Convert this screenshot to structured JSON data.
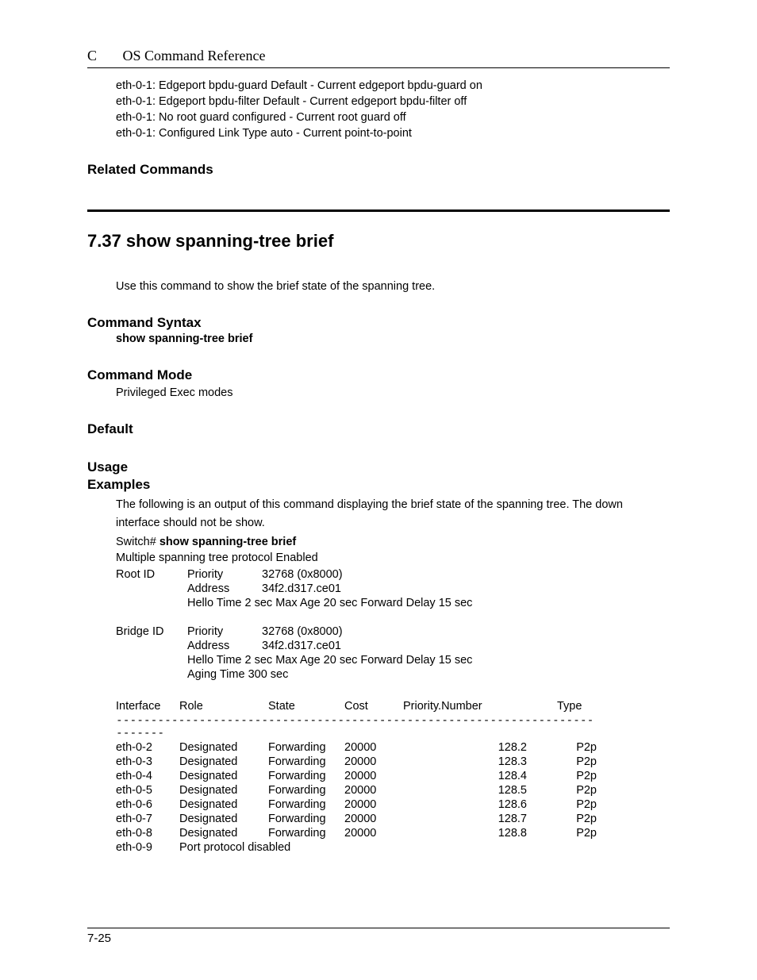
{
  "header": {
    "chapter_letter": "C",
    "title": "OS Command Reference"
  },
  "intro_lines": [
    "eth-0-1: Edgeport bpdu-guard   Default - Current edgeport bpdu-guard on",
    "eth-0-1: Edgeport bpdu-filter Default - Current edgeport bpdu-filter off",
    "eth-0-1: No root guard configured - Current root guard off",
    "eth-0-1: Configured Link Type auto - Current point-to-point"
  ],
  "related_heading": "Related Commands",
  "section": {
    "number": "7.37",
    "title": "show spanning-tree brief",
    "description": "Use this command to show the brief state of the spanning tree."
  },
  "syntax": {
    "heading": "Command Syntax",
    "line": "show spanning-tree brief"
  },
  "mode": {
    "heading": "Command Mode",
    "text": "Privileged Exec modes"
  },
  "default_heading": "Default",
  "usage_heading": "Usage",
  "examples": {
    "heading": "Examples",
    "intro": "The following is an output of this command displaying the brief state of the spanning tree. The down interface should not be show.",
    "prompt_prefix": "Switch# ",
    "prompt_cmd": "show spanning-tree brief",
    "protocol_line": "Multiple spanning tree protocol Enabled",
    "root": {
      "label": "Root ID",
      "priority_key": "Priority",
      "priority_val": "32768 (0x8000)",
      "address_key": "Address",
      "address_val": "34f2.d317.ce01",
      "timers": "Hello Time   2 sec   Max Age   20 sec Forward Delay 15 sec"
    },
    "bridge": {
      "label": "Bridge ID",
      "priority_key": "Priority",
      "priority_val": "32768 (0x8000)",
      "address_key": "Address",
      "address_val": "34f2.d317.ce01",
      "timers": "Hello Time   2 sec   Max Age   20 sec Forward Delay 15 sec",
      "aging": "Aging Time 300 sec"
    },
    "columns": {
      "interface": "Interface",
      "role": "Role",
      "state": "State",
      "cost": "Cost",
      "pn": "Priority.Number",
      "type": "Type"
    },
    "separator": "----------------------------------------------------------------------------",
    "rows": [
      {
        "int": "eth-0-2",
        "role": "Designated",
        "state": "Forwarding",
        "cost": "20000",
        "pn": "128.2",
        "type": "P2p"
      },
      {
        "int": "eth-0-3",
        "role": "Designated",
        "state": "Forwarding",
        "cost": "20000",
        "pn": "128.3",
        "type": "P2p"
      },
      {
        "int": "eth-0-4",
        "role": "Designated",
        "state": "Forwarding",
        "cost": "20000",
        "pn": "128.4",
        "type": "P2p"
      },
      {
        "int": "eth-0-5",
        "role": "Designated",
        "state": "Forwarding",
        "cost": "20000",
        "pn": "128.5",
        "type": "P2p"
      },
      {
        "int": "eth-0-6",
        "role": "Designated",
        "state": "Forwarding",
        "cost": "20000",
        "pn": "128.6",
        "type": "P2p"
      },
      {
        "int": "eth-0-7",
        "role": "Designated",
        "state": "Forwarding",
        "cost": "20000",
        "pn": "128.7",
        "type": "P2p"
      },
      {
        "int": "eth-0-8",
        "role": "Designated",
        "state": "Forwarding",
        "cost": "20000",
        "pn": "128.8",
        "type": "P2p"
      }
    ],
    "disabled_row": {
      "int": "eth-0-9",
      "text": "Port protocol disabled"
    }
  },
  "footer": {
    "page": "7-25"
  }
}
